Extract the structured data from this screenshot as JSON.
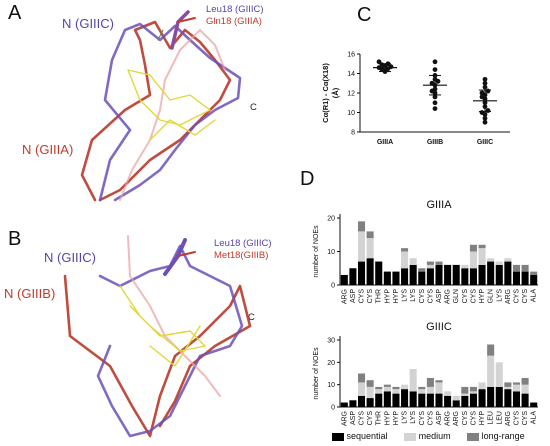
{
  "panels": {
    "a": {
      "letter": "A",
      "n_giiic": "N (GIIIC)",
      "n_giiia": "N (GIIIA)",
      "legend_top": "Leu18 (GIIIC)",
      "legend_bottom": "Gln18 (GIIIA)",
      "c_label": "C"
    },
    "b": {
      "letter": "B",
      "n_giiic": "N (GIIIC)",
      "n_giiib": "N (GIIIB)",
      "legend_top": "Leu18 (GIIIC)",
      "legend_bottom": "Met18(GIIIB)",
      "c_label": "C"
    },
    "c": {
      "letter": "C"
    },
    "d": {
      "letter": "D"
    }
  },
  "colors": {
    "giiic_purple": "#6a50b8",
    "giiia_red": "#b83a2a",
    "overlay_yellow": "#e8e04a",
    "sequential": "#000000",
    "medium": "#d3d3d3",
    "long_range": "#808080"
  },
  "chart_data": [
    {
      "type": "scatter",
      "ylabel": "Cα(R1) - Cα(X18)",
      "ylabel_unit": "(Å)",
      "categories": [
        "GIIIA",
        "GIIIB",
        "GIIIC"
      ],
      "ylim": [
        8,
        16
      ],
      "yticks": [
        8,
        10,
        12,
        14,
        16
      ],
      "series": [
        {
          "category": "GIIIA",
          "mean": 14.6,
          "sd": 0.4,
          "values": [
            14.2,
            14.4,
            14.5,
            14.6,
            14.7,
            14.8,
            15.0,
            15.2,
            14.3,
            14.9
          ]
        },
        {
          "category": "GIIIB",
          "mean": 12.8,
          "sd": 1.0,
          "values": [
            10.4,
            11.0,
            11.6,
            12.0,
            12.4,
            12.8,
            13.0,
            13.4,
            13.8,
            14.4,
            15.2,
            12.2,
            13.2
          ]
        },
        {
          "category": "GIIIC",
          "mean": 11.2,
          "sd": 1.1,
          "values": [
            9.0,
            9.4,
            9.8,
            10.2,
            10.6,
            11.0,
            11.4,
            11.8,
            12.2,
            12.6,
            13.0,
            13.4,
            10.0,
            11.6,
            12.0
          ]
        }
      ]
    },
    {
      "type": "bar",
      "title": "GIIIA",
      "ylabel": "number of NOEs",
      "ylim": [
        0,
        20
      ],
      "yticks": [
        0,
        10,
        20
      ],
      "categories": [
        "ARG",
        "ASP",
        "CYS",
        "CYS",
        "THR",
        "HYP",
        "HYP",
        "LYS",
        "LYS",
        "CYS",
        "CYS",
        "ASP",
        "ARG",
        "GLN",
        "CYS",
        "CYS",
        "HYP",
        "GLN",
        "LYS",
        "ARG",
        "CYS",
        "CYS",
        "ALA"
      ],
      "series": [
        {
          "name": "sequential",
          "values": [
            3,
            5,
            7,
            8,
            7,
            4,
            4,
            5,
            6,
            4,
            5,
            6,
            6,
            6,
            5,
            5,
            6,
            7,
            6,
            7,
            4,
            4,
            3
          ]
        },
        {
          "name": "medium",
          "values": [
            0,
            0,
            9,
            6,
            0,
            0,
            0,
            5,
            2,
            0,
            1,
            0,
            0,
            0,
            1,
            5,
            5,
            1,
            1,
            1,
            0,
            0,
            0
          ]
        },
        {
          "name": "long-range",
          "values": [
            0,
            0,
            3,
            2,
            0,
            0,
            0,
            1,
            0,
            1,
            1,
            1,
            0,
            0,
            0,
            2,
            1,
            0,
            0,
            0,
            2,
            2,
            1
          ]
        }
      ],
      "legend": [
        "sequential",
        "medium",
        "long-range"
      ]
    },
    {
      "type": "bar",
      "title": "GIIIC",
      "ylabel": "number of NOEs",
      "ylim": [
        0,
        30
      ],
      "yticks": [
        0,
        10,
        20,
        30
      ],
      "categories": [
        "ARG",
        "ASP",
        "CYS",
        "CYS",
        "THR",
        "HYP",
        "HYP",
        "LYS",
        "LYS",
        "CYS",
        "CYS",
        "ASP",
        "ARG",
        "ARG",
        "CYS",
        "CYS",
        "HYP",
        "LEU",
        "LEU",
        "ARG",
        "CYS",
        "CYS",
        "ALA"
      ],
      "series": [
        {
          "name": "sequential",
          "values": [
            2,
            3,
            5,
            4,
            6,
            7,
            6,
            8,
            7,
            6,
            6,
            6,
            5,
            3,
            5,
            6,
            8,
            9,
            9,
            8,
            7,
            6,
            2
          ]
        },
        {
          "name": "medium",
          "values": [
            0,
            0,
            6,
            5,
            2,
            2,
            2,
            2,
            10,
            2,
            3,
            5,
            2,
            2,
            1,
            1,
            3,
            14,
            11,
            1,
            3,
            4,
            0
          ]
        },
        {
          "name": "long-range",
          "values": [
            0,
            0,
            4,
            3,
            1,
            1,
            1,
            0,
            0,
            1,
            4,
            1,
            0,
            0,
            3,
            2,
            0,
            5,
            0,
            2,
            1,
            3,
            0
          ]
        }
      ],
      "legend": [
        "sequential",
        "medium",
        "long-range"
      ]
    }
  ]
}
